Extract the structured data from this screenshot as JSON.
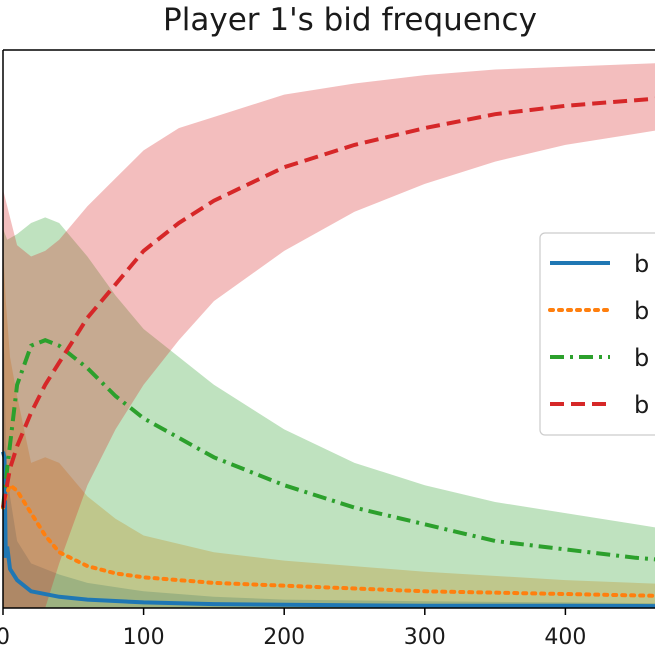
{
  "chart_data": {
    "type": "line",
    "title": "Player 1's bid frequency",
    "xlabel": "",
    "ylabel": "",
    "xlim": [
      0,
      500
    ],
    "ylim": [
      0,
      1
    ],
    "xticks": [
      0,
      100,
      200,
      300,
      400
    ],
    "xtick_labels": [
      "0",
      "100",
      "200",
      "300",
      "400"
    ],
    "grid": false,
    "legend_position": "right",
    "series": [
      {
        "name": "b",
        "color": "#1f77b4",
        "linestyle": "solid",
        "x": [
          0,
          1,
          2,
          3,
          5,
          10,
          20,
          40,
          60,
          100,
          150,
          200,
          300,
          400,
          500
        ],
        "values": [
          0.28,
          0.27,
          0.09,
          0.11,
          0.07,
          0.05,
          0.03,
          0.02,
          0.015,
          0.01,
          0.007,
          0.006,
          0.004,
          0.004,
          0.003
        ],
        "lower": [
          0.0,
          0.0,
          0.0,
          0.0,
          0.0,
          0.0,
          0.0,
          0.0,
          0.0,
          0.0,
          0.0,
          0.0,
          0.0,
          0.0,
          0.0
        ],
        "upper": [
          0.5,
          0.45,
          0.3,
          0.25,
          0.2,
          0.12,
          0.08,
          0.06,
          0.045,
          0.03,
          0.02,
          0.015,
          0.012,
          0.01,
          0.008
        ]
      },
      {
        "name": "b",
        "color": "#ff7f0e",
        "linestyle": "dotted",
        "x": [
          0,
          2,
          5,
          10,
          20,
          30,
          40,
          60,
          80,
          100,
          150,
          200,
          300,
          400,
          500
        ],
        "values": [
          0.18,
          0.2,
          0.22,
          0.21,
          0.17,
          0.13,
          0.1,
          0.075,
          0.062,
          0.055,
          0.045,
          0.04,
          0.03,
          0.025,
          0.02
        ],
        "lower": [
          0.0,
          0.0,
          0.0,
          0.0,
          0.0,
          0.0,
          0.0,
          0.0,
          0.0,
          0.0,
          0.0,
          0.0,
          0.0,
          0.0,
          0.0
        ],
        "upper": [
          0.65,
          0.55,
          0.45,
          0.38,
          0.26,
          0.27,
          0.26,
          0.2,
          0.16,
          0.13,
          0.1,
          0.085,
          0.065,
          0.05,
          0.04
        ]
      },
      {
        "name": "b",
        "color": "#2ca02c",
        "linestyle": "dashdot",
        "x": [
          0,
          3,
          10,
          20,
          30,
          40,
          50,
          60,
          80,
          100,
          150,
          200,
          250,
          300,
          350,
          400,
          450,
          500
        ],
        "values": [
          0.18,
          0.25,
          0.4,
          0.47,
          0.48,
          0.47,
          0.45,
          0.43,
          0.38,
          0.34,
          0.27,
          0.22,
          0.18,
          0.15,
          0.12,
          0.105,
          0.09,
          0.08
        ],
        "lower": [
          0.0,
          0.0,
          0.0,
          0.0,
          0.0,
          0.0,
          0.0,
          0.0,
          0.0,
          0.0,
          0.0,
          0.0,
          0.0,
          0.0,
          0.0,
          0.0,
          0.0,
          0.0
        ],
        "upper": [
          0.68,
          0.66,
          0.67,
          0.69,
          0.7,
          0.69,
          0.66,
          0.63,
          0.56,
          0.5,
          0.4,
          0.32,
          0.26,
          0.22,
          0.19,
          0.17,
          0.15,
          0.13
        ]
      },
      {
        "name": "b",
        "color": "#d62728",
        "linestyle": "dashed",
        "x": [
          0,
          5,
          10,
          20,
          30,
          40,
          50,
          60,
          80,
          100,
          125,
          150,
          200,
          250,
          300,
          350,
          400,
          450,
          500
        ],
        "values": [
          0.18,
          0.25,
          0.29,
          0.35,
          0.4,
          0.44,
          0.48,
          0.52,
          0.58,
          0.64,
          0.69,
          0.73,
          0.79,
          0.83,
          0.86,
          0.885,
          0.9,
          0.91,
          0.92
        ],
        "lower": [
          0.0,
          0.0,
          0.0,
          0.0,
          0.0,
          0.08,
          0.15,
          0.22,
          0.32,
          0.4,
          0.48,
          0.55,
          0.64,
          0.71,
          0.76,
          0.8,
          0.83,
          0.85,
          0.87
        ],
        "upper": [
          0.75,
          0.7,
          0.65,
          0.63,
          0.64,
          0.66,
          0.69,
          0.72,
          0.77,
          0.82,
          0.86,
          0.88,
          0.92,
          0.94,
          0.955,
          0.965,
          0.97,
          0.975,
          0.98
        ]
      }
    ]
  }
}
